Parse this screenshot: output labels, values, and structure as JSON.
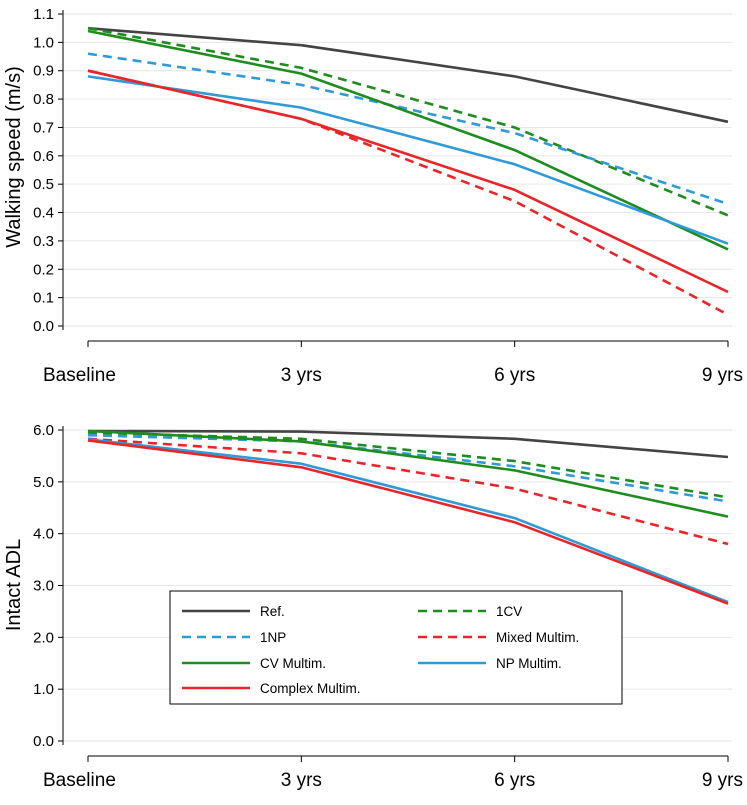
{
  "chart_data": [
    {
      "type": "line",
      "ylabel": "Walking speed (m/s)",
      "xlabel": "",
      "categories": [
        "Baseline",
        "3 yrs",
        "6 yrs",
        "9 yrs"
      ],
      "ylim": [
        0.0,
        1.1
      ],
      "yticks": [
        "0.0",
        "0.1",
        "0.2",
        "0.3",
        "0.4",
        "0.5",
        "0.6",
        "0.7",
        "0.8",
        "0.9",
        "1.0",
        "1.1"
      ],
      "ytick_values": [
        0.0,
        0.1,
        0.2,
        0.3,
        0.4,
        0.5,
        0.6,
        0.7,
        0.8,
        0.9,
        1.0,
        1.1
      ],
      "grid": true,
      "series": [
        {
          "name": "Ref.",
          "color": "#444444",
          "dash": "solid",
          "values": [
            1.05,
            0.99,
            0.88,
            0.72
          ]
        },
        {
          "name": "1CV",
          "color": "#1e8c1e",
          "dash": "dashed",
          "values": [
            1.05,
            0.91,
            0.7,
            0.39
          ]
        },
        {
          "name": "1NP",
          "color": "#2e9ad8",
          "dash": "dashed",
          "values": [
            0.96,
            0.85,
            0.68,
            0.43
          ]
        },
        {
          "name": "Mixed Multim.",
          "color": "#e8262a",
          "dash": "dashed",
          "values": [
            0.9,
            0.73,
            0.44,
            0.04
          ]
        },
        {
          "name": "CV Multim.",
          "color": "#1e8c1e",
          "dash": "solid",
          "values": [
            1.04,
            0.89,
            0.62,
            0.27
          ]
        },
        {
          "name": "NP Multim.",
          "color": "#2e9ad8",
          "dash": "solid",
          "values": [
            0.88,
            0.77,
            0.57,
            0.29
          ]
        },
        {
          "name": "Complex Multim.",
          "color": "#e8262a",
          "dash": "solid",
          "values": [
            0.9,
            0.73,
            0.48,
            0.12
          ]
        }
      ]
    },
    {
      "type": "line",
      "ylabel": "Intact ADL",
      "xlabel": "",
      "categories": [
        "Baseline",
        "3 yrs",
        "6 yrs",
        "9 yrs"
      ],
      "ylim": [
        0.0,
        6.0
      ],
      "yticks": [
        "0.0",
        "1.0",
        "2.0",
        "3.0",
        "4.0",
        "5.0",
        "6.0"
      ],
      "ytick_values": [
        0.0,
        1.0,
        2.0,
        3.0,
        4.0,
        5.0,
        6.0
      ],
      "grid": true,
      "legend_position": "lower-center inside plot, 2 columns",
      "series": [
        {
          "name": "Ref.",
          "color": "#444444",
          "dash": "solid",
          "values": [
            5.98,
            5.97,
            5.83,
            5.48
          ]
        },
        {
          "name": "1CV",
          "color": "#1e8c1e",
          "dash": "dashed",
          "values": [
            5.95,
            5.83,
            5.4,
            4.7
          ]
        },
        {
          "name": "1NP",
          "color": "#2e9ad8",
          "dash": "dashed",
          "values": [
            5.9,
            5.78,
            5.3,
            4.62
          ]
        },
        {
          "name": "Mixed Multim.",
          "color": "#e8262a",
          "dash": "dashed",
          "values": [
            5.83,
            5.55,
            4.87,
            3.8
          ]
        },
        {
          "name": "CV Multim.",
          "color": "#1e8c1e",
          "dash": "solid",
          "values": [
            5.98,
            5.78,
            5.22,
            4.33
          ]
        },
        {
          "name": "NP Multim.",
          "color": "#2e9ad8",
          "dash": "solid",
          "values": [
            5.82,
            5.35,
            4.3,
            2.68
          ]
        },
        {
          "name": "Complex Multim.",
          "color": "#e8262a",
          "dash": "solid",
          "values": [
            5.8,
            5.28,
            4.22,
            2.65
          ]
        }
      ]
    }
  ],
  "legend": {
    "items": [
      {
        "label": "Ref.",
        "color": "#444444",
        "dash": "solid"
      },
      {
        "label": "1CV",
        "color": "#1e8c1e",
        "dash": "dashed"
      },
      {
        "label": "1NP",
        "color": "#2e9ad8",
        "dash": "dashed"
      },
      {
        "label": "Mixed Multim.",
        "color": "#e8262a",
        "dash": "dashed"
      },
      {
        "label": "CV Multim.",
        "color": "#1e8c1e",
        "dash": "solid"
      },
      {
        "label": "NP Multim.",
        "color": "#2e9ad8",
        "dash": "solid"
      },
      {
        "label": "Complex Multim.",
        "color": "#e8262a",
        "dash": "solid"
      }
    ]
  }
}
